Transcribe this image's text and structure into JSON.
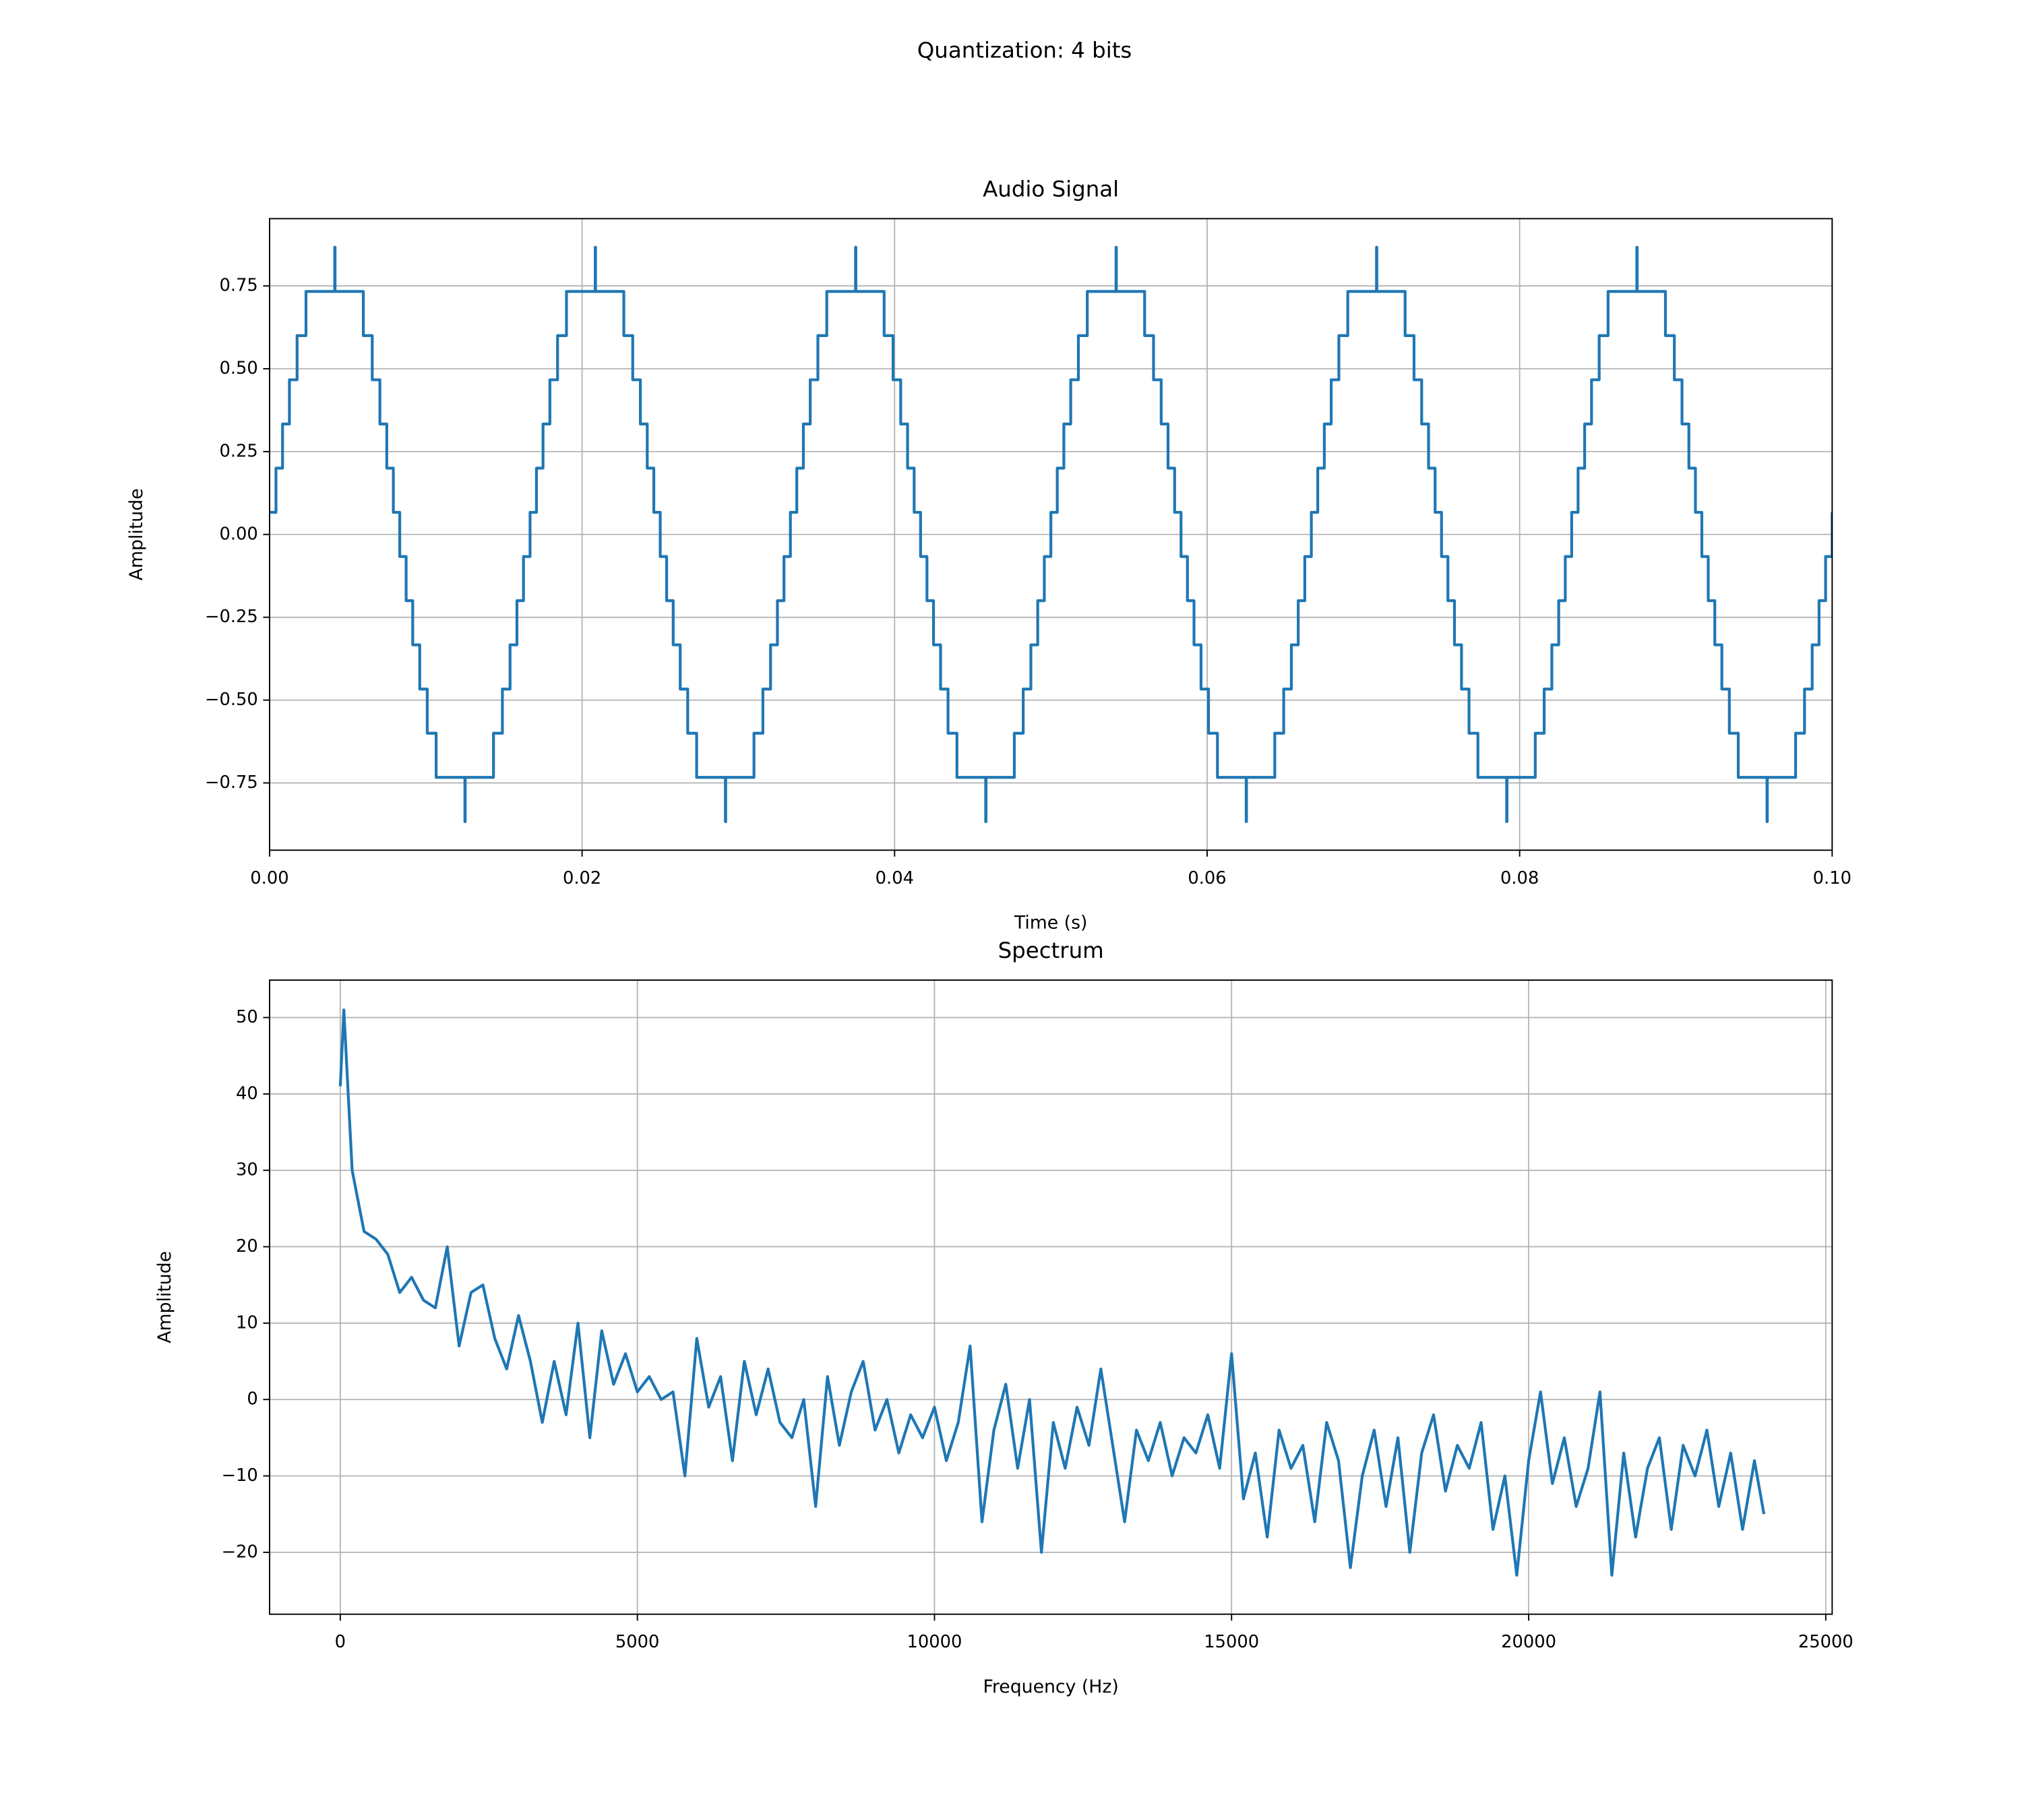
{
  "title": "Quantization: 4 bits",
  "chart_data": [
    {
      "type": "line",
      "title": "Audio Signal",
      "x_label": "Time (s)",
      "y_label": "Amplitude",
      "grid": true,
      "drawstyle": "steps-post",
      "xlim": [
        0,
        0.1
      ],
      "ylim": [
        -0.953,
        0.953
      ],
      "xticks": [
        {
          "value": 0,
          "label": "0.00"
        },
        {
          "value": 0.02,
          "label": "0.02"
        },
        {
          "value": 0.04,
          "label": "0.04"
        },
        {
          "value": 0.06,
          "label": "0.06"
        },
        {
          "value": 0.08,
          "label": "0.08"
        },
        {
          "value": 0.1,
          "label": "0.10"
        }
      ],
      "yticks": [
        {
          "value": -0.75,
          "label": "−0.75"
        },
        {
          "value": -0.5,
          "label": "−0.50"
        },
        {
          "value": -0.25,
          "label": "−0.25"
        },
        {
          "value": 0,
          "label": "0.00"
        },
        {
          "value": 0.25,
          "label": "0.25"
        },
        {
          "value": 0.5,
          "label": "0.50"
        },
        {
          "value": 0.75,
          "label": "0.75"
        }
      ],
      "x": [
        0,
        0.00041,
        0.00083,
        0.00127,
        0.00176,
        0.00233,
        0.00417,
        0.00419,
        0.006,
        0.00657,
        0.00706,
        0.0075,
        0.00792,
        0.00833,
        0.00874,
        0.00916,
        0.00961,
        0.01009,
        0.01066,
        0.0125,
        0.01252,
        0.01433,
        0.0149,
        0.01539,
        0.01583,
        0.01625,
        0.01667,
        0.01708,
        0.0175,
        0.01794,
        0.01843,
        0.019,
        0.02084,
        0.02086,
        0.02267,
        0.02324,
        0.02373,
        0.02417,
        0.02459,
        0.025,
        0.02541,
        0.02583,
        0.02628,
        0.02676,
        0.02733,
        0.02917,
        0.02919,
        0.031,
        0.03157,
        0.03206,
        0.0325,
        0.03292,
        0.03333,
        0.03374,
        0.03416,
        0.0346,
        0.03509,
        0.03566,
        0.0375,
        0.03752,
        0.03933,
        0.0399,
        0.04039,
        0.04083,
        0.04125,
        0.04166,
        0.04207,
        0.04249,
        0.04294,
        0.04342,
        0.04399,
        0.04583,
        0.04585,
        0.04766,
        0.04823,
        0.04872,
        0.04916,
        0.04958,
        0.05,
        0.05041,
        0.05083,
        0.05127,
        0.05176,
        0.05233,
        0.05417,
        0.05419,
        0.056,
        0.05657,
        0.05706,
        0.0575,
        0.05792,
        0.05833,
        0.05874,
        0.05916,
        0.05961,
        0.06009,
        0.06066,
        0.0625,
        0.06252,
        0.06433,
        0.0649,
        0.06539,
        0.06583,
        0.06625,
        0.06667,
        0.06708,
        0.0675,
        0.06794,
        0.06843,
        0.069,
        0.07084,
        0.07086,
        0.07267,
        0.07324,
        0.07373,
        0.07417,
        0.07459,
        0.075,
        0.07541,
        0.07583,
        0.07628,
        0.07676,
        0.07733,
        0.07917,
        0.07919,
        0.081,
        0.08157,
        0.08206,
        0.0825,
        0.08292,
        0.08333,
        0.08374,
        0.08416,
        0.0846,
        0.08509,
        0.08566,
        0.0875,
        0.08752,
        0.08933,
        0.0899,
        0.09039,
        0.09083,
        0.09125,
        0.09166,
        0.09207,
        0.09249,
        0.09294,
        0.09342,
        0.09399,
        0.09583,
        0.09585,
        0.09766,
        0.09823,
        0.09872,
        0.09916,
        0.09958,
        0.1
      ],
      "series": [
        {
          "color": "#1f77b4",
          "values": [
            0.0667,
            0.2,
            0.3333,
            0.4667,
            0.6,
            0.7333,
            0.8667,
            0.7333,
            0.6,
            0.4667,
            0.3333,
            0.2,
            0.0667,
            -0.0667,
            -0.2,
            -0.3333,
            -0.4667,
            -0.6,
            -0.7333,
            -0.8667,
            -0.7333,
            -0.6,
            -0.4667,
            -0.3333,
            -0.2,
            -0.0667,
            0.0667,
            0.2,
            0.3333,
            0.4667,
            0.6,
            0.7333,
            0.8667,
            0.7333,
            0.6,
            0.4667,
            0.3333,
            0.2,
            0.0667,
            -0.0667,
            -0.2,
            -0.3333,
            -0.4667,
            -0.6,
            -0.7333,
            -0.8667,
            -0.7333,
            -0.6,
            -0.4667,
            -0.3333,
            -0.2,
            -0.0667,
            0.0667,
            0.2,
            0.3333,
            0.4667,
            0.6,
            0.7333,
            0.8667,
            0.7333,
            0.6,
            0.4667,
            0.3333,
            0.2,
            0.0667,
            -0.0667,
            -0.2,
            -0.3333,
            -0.4667,
            -0.6,
            -0.7333,
            -0.8667,
            -0.7333,
            -0.6,
            -0.4667,
            -0.3333,
            -0.2,
            -0.0667,
            0.0667,
            0.2,
            0.3333,
            0.4667,
            0.6,
            0.7333,
            0.8667,
            0.7333,
            0.6,
            0.4667,
            0.3333,
            0.2,
            0.0667,
            -0.0667,
            -0.2,
            -0.3333,
            -0.4667,
            -0.6,
            -0.7333,
            -0.8667,
            -0.7333,
            -0.6,
            -0.4667,
            -0.3333,
            -0.2,
            -0.0667,
            0.0667,
            0.2,
            0.3333,
            0.4667,
            0.6,
            0.7333,
            0.8667,
            0.7333,
            0.6,
            0.4667,
            0.3333,
            0.2,
            0.0667,
            -0.0667,
            -0.2,
            -0.3333,
            -0.4667,
            -0.6,
            -0.7333,
            -0.8667,
            -0.7333,
            -0.6,
            -0.4667,
            -0.3333,
            -0.2,
            -0.0667,
            0.0667,
            0.2,
            0.3333,
            0.4667,
            0.6,
            0.7333,
            0.8667,
            0.7333,
            0.6,
            0.4667,
            0.3333,
            0.2,
            0.0667,
            -0.0667,
            -0.2,
            -0.3333,
            -0.4667,
            -0.6,
            -0.7333,
            -0.8667,
            -0.7333,
            -0.6,
            -0.4667,
            -0.3333,
            -0.2,
            -0.0667,
            0.0667
          ]
        }
      ]
    },
    {
      "type": "line",
      "title": "Spectrum",
      "x_label": "Frequency (Hz)",
      "y_label": "Amplitude",
      "grid": true,
      "xlim": [
        -1190,
        25108
      ],
      "ylim": [
        -28.1,
        54.9
      ],
      "xticks": [
        0,
        5000,
        10000,
        15000,
        20000,
        25000
      ],
      "yticks": [
        {
          "value": -20,
          "label": "−20"
        },
        {
          "value": -10,
          "label": "−10"
        },
        0,
        10,
        20,
        30,
        40,
        50
      ],
      "x": [
        0,
        60,
        200,
        400,
        600,
        800,
        1000,
        1200,
        1400,
        1600,
        1800,
        2000,
        2200,
        2400,
        2600,
        2800,
        3000,
        3200,
        3400,
        3600,
        3800,
        4000,
        4200,
        4400,
        4600,
        4800,
        5000,
        5200,
        5400,
        5600,
        5800,
        6000,
        6200,
        6400,
        6600,
        6800,
        7000,
        7200,
        7400,
        7600,
        7800,
        8000,
        8200,
        8400,
        8600,
        8800,
        9000,
        9200,
        9400,
        9600,
        9800,
        10000,
        10200,
        10400,
        10600,
        10800,
        11000,
        11200,
        11400,
        11600,
        11800,
        12000,
        12200,
        12400,
        12600,
        12800,
        13000,
        13200,
        13400,
        13600,
        13800,
        14000,
        14200,
        14400,
        14600,
        14800,
        15000,
        15200,
        15400,
        15600,
        15800,
        16000,
        16200,
        16400,
        16600,
        16800,
        17000,
        17200,
        17400,
        17600,
        17800,
        18000,
        18200,
        18400,
        18600,
        18800,
        19000,
        19200,
        19400,
        19600,
        19800,
        20000,
        20200,
        20400,
        20600,
        20800,
        21000,
        21200,
        21400,
        21600,
        21800,
        22000,
        22200,
        22400,
        22600,
        22800,
        23000,
        23200,
        23400,
        23600,
        23800,
        23960
      ],
      "series": [
        {
          "color": "#1f77b4",
          "values": [
            41,
            51,
            30,
            22,
            21,
            19,
            14,
            16,
            13,
            12,
            20,
            7,
            14,
            15,
            8,
            4,
            11,
            5,
            -3,
            5,
            -2,
            10,
            -5,
            9,
            2,
            6,
            1,
            3,
            0,
            1,
            -10,
            8,
            -1,
            3,
            -8,
            5,
            -2,
            4,
            -3,
            -5,
            0,
            -14,
            3,
            -6,
            1,
            5,
            -4,
            0,
            -7,
            -2,
            -5,
            -1,
            -8,
            -3,
            7,
            -16,
            -4,
            2,
            -9,
            0,
            -20,
            -3,
            -9,
            -1,
            -6,
            4,
            -6,
            -16,
            -4,
            -8,
            -3,
            -10,
            -5,
            -7,
            -2,
            -9,
            6,
            -13,
            -7,
            -18,
            -4,
            -9,
            -6,
            -16,
            -3,
            -8,
            -22,
            -10,
            -4,
            -14,
            -5,
            -20,
            -7,
            -2,
            -12,
            -6,
            -9,
            -3,
            -17,
            -10,
            -23,
            -8,
            1,
            -11,
            -5,
            -14,
            -9,
            1,
            -23,
            -7,
            -18,
            -9,
            -5,
            -17,
            -6,
            -10,
            -4,
            -14,
            -7,
            -17,
            -8,
            -15
          ]
        }
      ]
    }
  ]
}
